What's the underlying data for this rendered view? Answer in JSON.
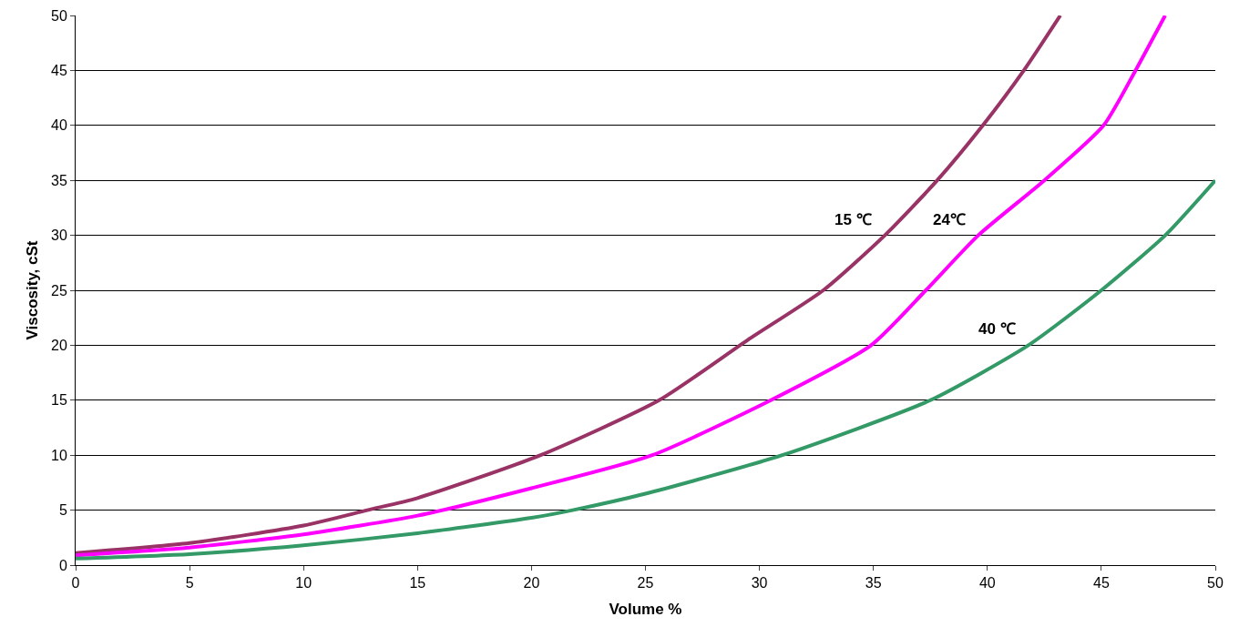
{
  "chart_data": {
    "type": "line",
    "xlabel": "Volume %",
    "ylabel": "Viscosity, cSt",
    "xlim": [
      0,
      50
    ],
    "xticks": [
      0,
      5,
      10,
      15,
      20,
      25,
      30,
      35,
      40,
      45,
      50
    ],
    "ylim": [
      0,
      50
    ],
    "yticks": [
      0,
      5,
      10,
      15,
      20,
      25,
      30,
      35,
      40,
      45,
      50
    ],
    "grid": "y",
    "legend": false,
    "marker": "none",
    "line_style": "solid",
    "series": [
      {
        "name": "15 ℃",
        "color": "#993366",
        "x": [
          0,
          5,
          10,
          12.8,
          15,
          20.4,
          25.6,
          29.5,
          32.8,
          35.5,
          37.8,
          39.8,
          41.6,
          43.2
        ],
        "values": [
          1.1,
          2,
          3.6,
          5,
          6.1,
          10,
          15,
          20.5,
          25,
          30,
          35,
          40,
          45,
          50
        ]
      },
      {
        "name": "24℃",
        "color": "#ff00ff",
        "x": [
          0,
          5,
          10,
          15,
          20,
          25.3,
          30.5,
          34.9,
          37.3,
          39.6,
          42.5,
          45.1,
          46.5,
          47.8
        ],
        "values": [
          0.9,
          1.6,
          2.8,
          4.5,
          7,
          10,
          15,
          20,
          25,
          30,
          35,
          40,
          45,
          50
        ]
      },
      {
        "name": "40 ℃",
        "color": "#339966",
        "x": [
          0,
          5,
          10,
          15,
          20,
          21.8,
          25,
          31,
          37.5,
          41.8,
          45,
          47.8,
          50
        ],
        "values": [
          0.6,
          1,
          1.8,
          2.9,
          4.3,
          5,
          6.5,
          10,
          15,
          20,
          25,
          30,
          35
        ]
      }
    ]
  }
}
